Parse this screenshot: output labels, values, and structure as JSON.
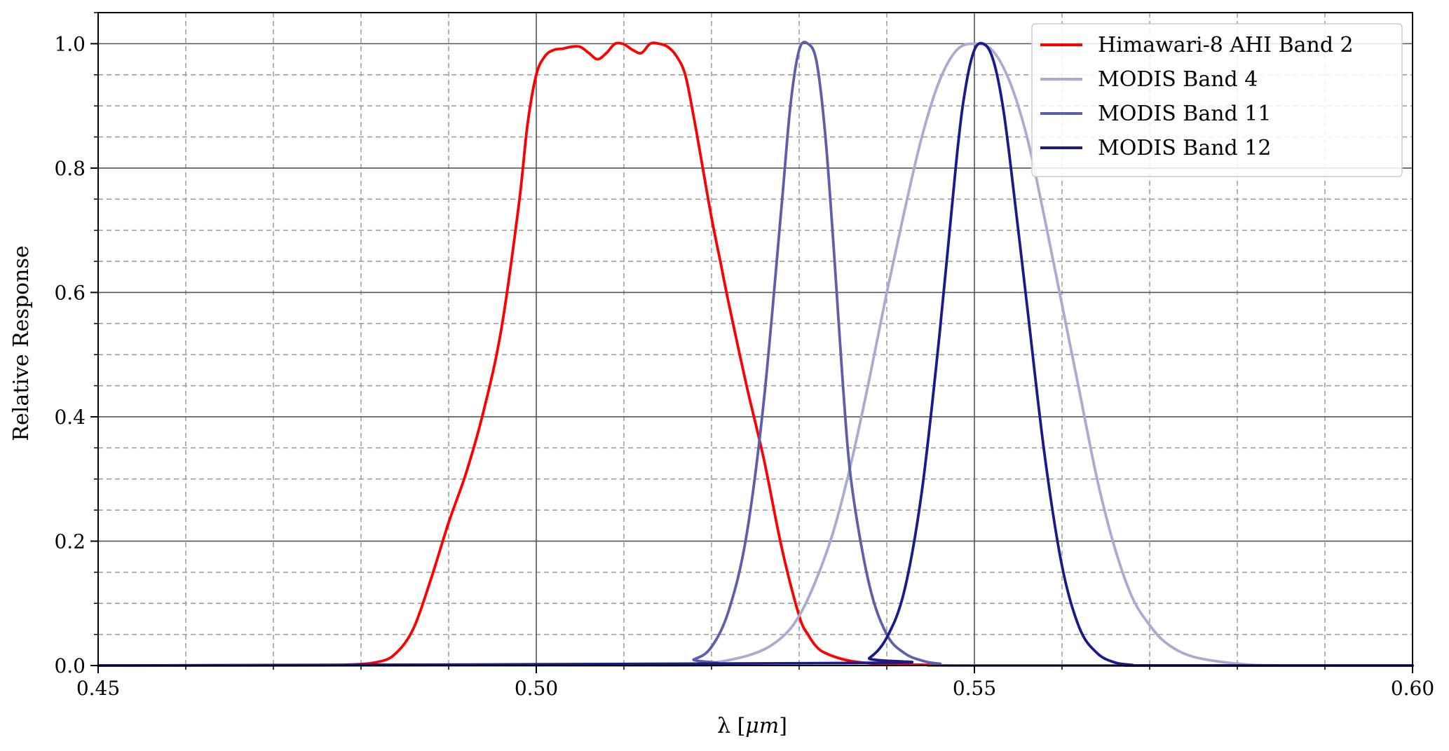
{
  "chart_data": {
    "type": "line",
    "xlabel_prefix": "λ [",
    "xlabel_unit": "μm",
    "xlabel_suffix": "]",
    "ylabel": "Relative Response",
    "xlim": [
      0.45,
      0.6
    ],
    "ylim": [
      0.0,
      1.05
    ],
    "xticks": [
      0.45,
      0.5,
      0.55,
      0.6
    ],
    "xtick_labels": [
      "0.45",
      "0.50",
      "0.55",
      "0.60"
    ],
    "yticks": [
      0.0,
      0.2,
      0.4,
      0.6,
      0.8,
      1.0
    ],
    "ytick_labels": [
      "0.0",
      "0.2",
      "0.4",
      "0.6",
      "0.8",
      "1.0"
    ],
    "x_minor_step": 0.01,
    "y_minor_step": 0.05,
    "grid": true,
    "legend_placement": "top-right",
    "series": [
      {
        "name": "Himawari-8 AHI Band 2",
        "color": "#ff0000",
        "x": [
          0.45,
          0.47,
          0.478,
          0.482,
          0.484,
          0.486,
          0.488,
          0.49,
          0.492,
          0.494,
          0.496,
          0.498,
          0.499,
          0.5,
          0.501,
          0.502,
          0.503,
          0.504,
          0.505,
          0.506,
          0.507,
          0.508,
          0.509,
          0.51,
          0.511,
          0.512,
          0.513,
          0.514,
          0.515,
          0.516,
          0.517,
          0.518,
          0.519,
          0.52,
          0.521,
          0.522,
          0.524,
          0.526,
          0.528,
          0.53,
          0.531,
          0.532,
          0.533,
          0.535,
          0.537,
          0.54,
          0.545,
          0.55,
          0.6
        ],
        "values": [
          0.0,
          0.0,
          0.001,
          0.006,
          0.02,
          0.06,
          0.14,
          0.23,
          0.31,
          0.41,
          0.54,
          0.74,
          0.87,
          0.95,
          0.98,
          0.99,
          0.992,
          0.995,
          0.995,
          0.985,
          0.975,
          0.985,
          1.0,
          0.999,
          0.99,
          0.985,
          1.0,
          1.0,
          0.995,
          0.98,
          0.95,
          0.88,
          0.8,
          0.72,
          0.65,
          0.58,
          0.45,
          0.33,
          0.19,
          0.08,
          0.05,
          0.03,
          0.02,
          0.01,
          0.005,
          0.002,
          0.001,
          0.0,
          0.0
        ]
      },
      {
        "name": "MODIS Band 4",
        "color": "#aaaad3",
        "x": [
          0.45,
          0.515,
          0.52,
          0.525,
          0.528,
          0.53,
          0.532,
          0.534,
          0.536,
          0.538,
          0.54,
          0.542,
          0.544,
          0.546,
          0.548,
          0.55,
          0.552,
          0.554,
          0.556,
          0.558,
          0.56,
          0.562,
          0.564,
          0.566,
          0.568,
          0.57,
          0.572,
          0.575,
          0.58,
          0.585,
          0.6
        ],
        "values": [
          0.0,
          0.0,
          0.004,
          0.02,
          0.045,
          0.08,
          0.14,
          0.22,
          0.33,
          0.46,
          0.6,
          0.73,
          0.85,
          0.94,
          0.99,
          1.0,
          0.99,
          0.94,
          0.85,
          0.72,
          0.58,
          0.44,
          0.3,
          0.19,
          0.11,
          0.065,
          0.035,
          0.014,
          0.003,
          0.0,
          0.0
        ]
      },
      {
        "name": "MODIS Band 11",
        "color": "#5f5fa9",
        "x": [
          0.45,
          0.515,
          0.518,
          0.52,
          0.522,
          0.524,
          0.526,
          0.528,
          0.529,
          0.53,
          0.531,
          0.532,
          0.533,
          0.534,
          0.535,
          0.536,
          0.538,
          0.54,
          0.542,
          0.544,
          0.546,
          0.55,
          0.6
        ],
        "values": [
          0.0,
          0.002,
          0.01,
          0.03,
          0.09,
          0.21,
          0.43,
          0.74,
          0.9,
          0.99,
          1.0,
          0.97,
          0.85,
          0.66,
          0.45,
          0.29,
          0.13,
          0.05,
          0.02,
          0.008,
          0.003,
          0.0,
          0.0
        ]
      },
      {
        "name": "MODIS Band 12",
        "color": "#1a1a8a",
        "x": [
          0.45,
          0.536,
          0.538,
          0.54,
          0.542,
          0.544,
          0.546,
          0.548,
          0.549,
          0.55,
          0.551,
          0.552,
          0.553,
          0.554,
          0.556,
          0.558,
          0.56,
          0.562,
          0.564,
          0.566,
          0.568,
          0.57,
          0.6
        ],
        "values": [
          0.0,
          0.004,
          0.012,
          0.045,
          0.12,
          0.28,
          0.53,
          0.82,
          0.93,
          0.99,
          1.0,
          0.98,
          0.92,
          0.82,
          0.58,
          0.34,
          0.16,
          0.06,
          0.02,
          0.005,
          0.001,
          0.0,
          0.0
        ]
      }
    ]
  }
}
